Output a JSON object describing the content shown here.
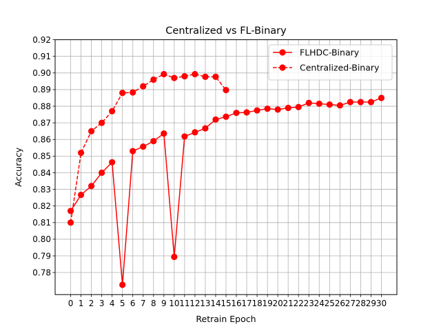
{
  "chart_data": {
    "type": "line",
    "title": "Centralized vs FL-Binary",
    "xlabel": "Retrain Epoch",
    "ylabel": "Accuracy",
    "x": [
      0,
      1,
      2,
      3,
      4,
      5,
      6,
      7,
      8,
      9,
      10,
      11,
      12,
      13,
      14,
      15,
      16,
      17,
      18,
      19,
      20,
      21,
      22,
      23,
      24,
      25,
      26,
      27,
      28,
      29,
      30
    ],
    "x_ticks": [
      0,
      1,
      2,
      3,
      4,
      5,
      6,
      7,
      8,
      9,
      10,
      11,
      12,
      13,
      14,
      15,
      16,
      17,
      18,
      19,
      20,
      21,
      22,
      23,
      24,
      25,
      26,
      27,
      28,
      29,
      30
    ],
    "x_tick_labels": [
      "0",
      "1",
      "2",
      "3",
      "4",
      "5",
      "6",
      "7",
      "8",
      "9",
      "10",
      "11",
      "12",
      "13",
      "14",
      "15",
      "16",
      "17",
      "18",
      "19",
      "20",
      "21",
      "22",
      "23",
      "24",
      "25",
      "26",
      "27",
      "28",
      "29",
      "30"
    ],
    "y_ticks": [
      0.78,
      0.79,
      0.8,
      0.81,
      0.82,
      0.83,
      0.84,
      0.85,
      0.86,
      0.87,
      0.88,
      0.89,
      0.9,
      0.91,
      0.92
    ],
    "y_tick_labels": [
      "0.78",
      "0.79",
      "0.80",
      "0.81",
      "0.82",
      "0.83",
      "0.84",
      "0.85",
      "0.86",
      "0.87",
      "0.88",
      "0.89",
      "0.90",
      "0.91",
      "0.92"
    ],
    "xlim": [
      -1.5,
      31.5
    ],
    "ylim": [
      0.7667,
      0.92
    ],
    "grid": true,
    "legend_position": "top-right",
    "series": [
      {
        "name": "FLHDC-Binary",
        "color": "#ff0000",
        "linestyle": "solid",
        "marker": "circle",
        "x": [
          0,
          1,
          2,
          3,
          4,
          5,
          6,
          7,
          8,
          9,
          10,
          11,
          12,
          13,
          14,
          15,
          16,
          17,
          18,
          19,
          20,
          21,
          22,
          23,
          24,
          25,
          26,
          27,
          28,
          29,
          30
        ],
        "values": [
          0.817,
          0.8267,
          0.832,
          0.84,
          0.8463,
          0.7726,
          0.853,
          0.8557,
          0.859,
          0.8636,
          0.7894,
          0.8618,
          0.8643,
          0.8667,
          0.872,
          0.8737,
          0.876,
          0.8763,
          0.8775,
          0.8785,
          0.878,
          0.879,
          0.8795,
          0.882,
          0.8815,
          0.881,
          0.8805,
          0.8825,
          0.8825,
          0.8825,
          0.885
        ]
      },
      {
        "name": "Centralized-Binary",
        "color": "#ff0000",
        "linestyle": "dashed",
        "marker": "circle",
        "x": [
          0,
          1,
          2,
          3,
          4,
          5,
          6,
          7,
          8,
          9,
          10,
          11,
          12,
          13,
          14,
          15
        ],
        "values": [
          0.81,
          0.852,
          0.865,
          0.87,
          0.877,
          0.888,
          0.8883,
          0.892,
          0.896,
          0.8993,
          0.897,
          0.898,
          0.8993,
          0.8977,
          0.8977,
          0.8897
        ]
      }
    ]
  }
}
